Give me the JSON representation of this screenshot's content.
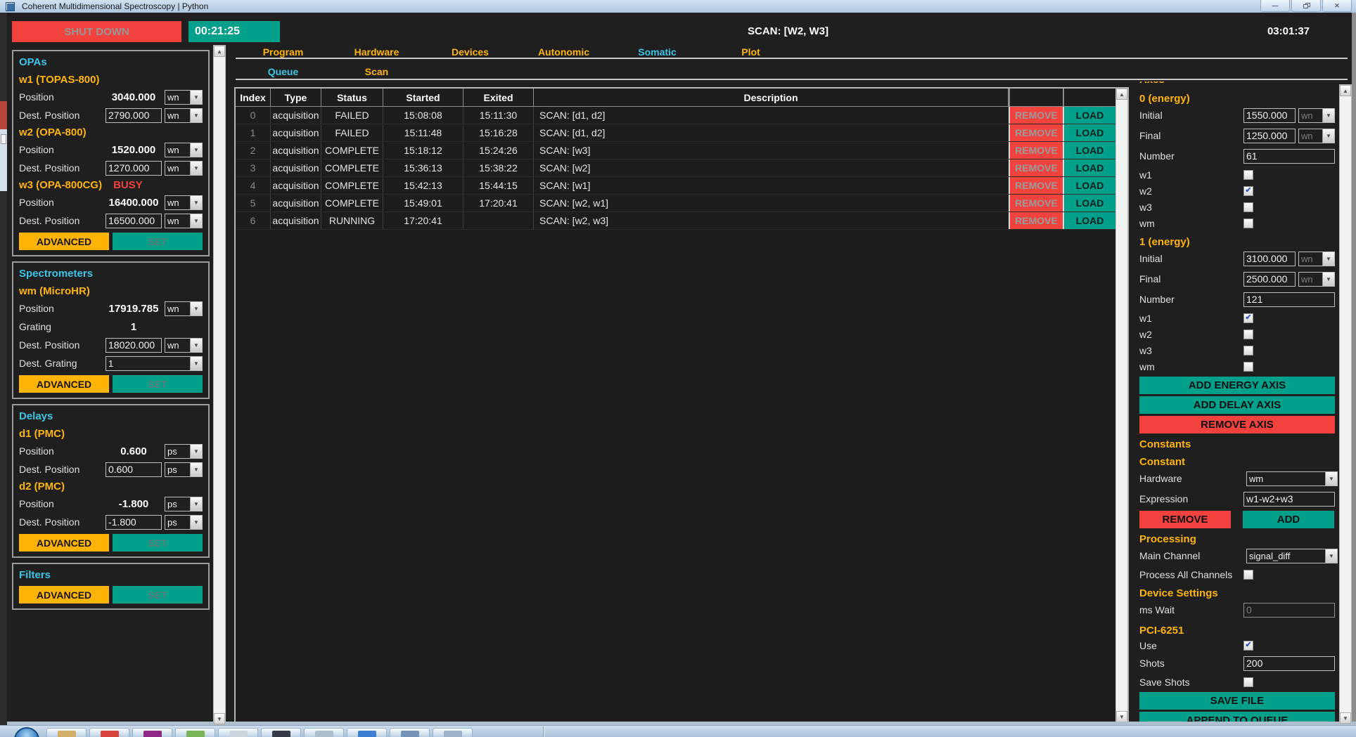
{
  "titlebar": {
    "title": "Coherent Multidimensional Spectroscopy | Python",
    "window_buttons": [
      {
        "name": "minimize",
        "glyph": "—"
      },
      {
        "name": "restore",
        "glyph": ""
      },
      {
        "name": "close",
        "glyph": "✕"
      }
    ]
  },
  "icons": {
    "chevron_down": "▼",
    "check": "✔",
    "scroll_up": "▲",
    "scroll_down": "▼"
  },
  "colors": {
    "teal": "#00a08b",
    "red": "#f2423e",
    "gold": "#ffb40c",
    "cyan": "#3cc5e8"
  },
  "topbar": {
    "shutdown_label": "SHUT DOWN",
    "timer": "00:21:25",
    "scan_status": "SCAN: [W2, W3]",
    "clock": "03:01:37"
  },
  "tabs": [
    {
      "label": "Program",
      "active": false
    },
    {
      "label": "Hardware",
      "active": false
    },
    {
      "label": "Devices",
      "active": false
    },
    {
      "label": "Autonomic",
      "active": false
    },
    {
      "label": "Somatic",
      "active": true
    },
    {
      "label": "Plot",
      "active": false
    }
  ],
  "subtabs": [
    {
      "label": "Queue",
      "active": true
    },
    {
      "label": "Scan",
      "active": false
    }
  ],
  "sidebar": {
    "sections": [
      {
        "title": "OPAs",
        "rows": [
          {
            "type": "device",
            "name": "w1 (TOPAS-800)",
            "status": ""
          },
          {
            "type": "readout",
            "label": "Position",
            "value": "3040.000",
            "unit": "wn"
          },
          {
            "type": "input",
            "label": "Dest. Position",
            "value": "2790.000",
            "unit": "wn"
          },
          {
            "type": "device",
            "name": "w2 (OPA-800)",
            "status": ""
          },
          {
            "type": "readout",
            "label": "Position",
            "value": "1520.000",
            "unit": "wn"
          },
          {
            "type": "input",
            "label": "Dest. Position",
            "value": "1270.000",
            "unit": "wn"
          },
          {
            "type": "device",
            "name": "w3 (OPA-800CG)",
            "status": "BUSY"
          },
          {
            "type": "readout",
            "label": "Position",
            "value": "16400.000",
            "unit": "wn"
          },
          {
            "type": "input",
            "label": "Dest. Position",
            "value": "16500.000",
            "unit": "wn"
          },
          {
            "type": "actions",
            "advanced": "ADVANCED",
            "set": "SET"
          }
        ]
      },
      {
        "title": "Spectrometers",
        "rows": [
          {
            "type": "device",
            "name": "wm (MicroHR)",
            "status": ""
          },
          {
            "type": "readout",
            "label": "Position",
            "value": "17919.785",
            "unit": "wn"
          },
          {
            "type": "readout-plain",
            "label": "Grating",
            "value": "1"
          },
          {
            "type": "input",
            "label": "Dest. Position",
            "value": "18020.000",
            "unit": "wn"
          },
          {
            "type": "select",
            "label": "Dest. Grating",
            "value": "1"
          },
          {
            "type": "actions",
            "advanced": "ADVANCED",
            "set": "SET"
          }
        ]
      },
      {
        "title": "Delays",
        "rows": [
          {
            "type": "device",
            "name": "d1 (PMC)",
            "status": ""
          },
          {
            "type": "readout",
            "label": "Position",
            "value": "0.600",
            "unit": "ps"
          },
          {
            "type": "input",
            "label": "Dest. Position",
            "value": "0.600",
            "unit": "ps"
          },
          {
            "type": "device",
            "name": "d2 (PMC)",
            "status": ""
          },
          {
            "type": "readout",
            "label": "Position",
            "value": "-1.800",
            "unit": "ps"
          },
          {
            "type": "input",
            "label": "Dest. Position",
            "value": "-1.800",
            "unit": "ps"
          },
          {
            "type": "actions",
            "advanced": "ADVANCED",
            "set": "SET"
          }
        ]
      },
      {
        "title": "Filters",
        "rows": [
          {
            "type": "actions",
            "advanced": "ADVANCED",
            "set": "SET"
          }
        ]
      }
    ]
  },
  "queue": {
    "columns": [
      "Index",
      "Type",
      "Status",
      "Started",
      "Exited",
      "Description"
    ],
    "rows": [
      {
        "index": "0",
        "type": "acquisition",
        "status": "FAILED",
        "started": "15:08:08",
        "exited": "15:11:30",
        "description": "SCAN: [d1, d2]",
        "remove_label": "REMOVE",
        "load_label": "LOAD"
      },
      {
        "index": "1",
        "type": "acquisition",
        "status": "FAILED",
        "started": "15:11:48",
        "exited": "15:16:28",
        "description": "SCAN: [d1, d2]",
        "remove_label": "REMOVE",
        "load_label": "LOAD"
      },
      {
        "index": "2",
        "type": "acquisition",
        "status": "COMPLETE",
        "started": "15:18:12",
        "exited": "15:24:26",
        "description": "SCAN: [w3]",
        "remove_label": "REMOVE",
        "load_label": "LOAD"
      },
      {
        "index": "3",
        "type": "acquisition",
        "status": "COMPLETE",
        "started": "15:36:13",
        "exited": "15:38:22",
        "description": "SCAN: [w2]",
        "remove_label": "REMOVE",
        "load_label": "LOAD"
      },
      {
        "index": "4",
        "type": "acquisition",
        "status": "COMPLETE",
        "started": "15:42:13",
        "exited": "15:44:15",
        "description": "SCAN: [w1]",
        "remove_label": "REMOVE",
        "load_label": "LOAD"
      },
      {
        "index": "5",
        "type": "acquisition",
        "status": "COMPLETE",
        "started": "15:49:01",
        "exited": "17:20:41",
        "description": "SCAN: [w2, w1]",
        "remove_label": "REMOVE",
        "load_label": "LOAD"
      },
      {
        "index": "6",
        "type": "acquisition",
        "status": "RUNNING",
        "started": "17:20:41",
        "exited": "",
        "description": "SCAN: [w2, w3]",
        "remove_label": "REMOVE",
        "load_label": "LOAD"
      }
    ]
  },
  "right_panel": {
    "clipped_header": "Axes",
    "rows": [
      {
        "type": "header",
        "label": "0 (energy)"
      },
      {
        "type": "unit-input",
        "label": "Initial",
        "value": "1550.000",
        "unit": "wn"
      },
      {
        "type": "unit-input",
        "label": "Final",
        "value": "1250.000",
        "unit": "wn"
      },
      {
        "type": "input",
        "label": "Number",
        "value": "61"
      },
      {
        "type": "check",
        "label": "w1",
        "checked": false
      },
      {
        "type": "check",
        "label": "w2",
        "checked": true
      },
      {
        "type": "check",
        "label": "w3",
        "checked": false
      },
      {
        "type": "check",
        "label": "wm",
        "checked": false
      },
      {
        "type": "header",
        "label": "1 (energy)"
      },
      {
        "type": "unit-input",
        "label": "Initial",
        "value": "3100.000",
        "unit": "wn"
      },
      {
        "type": "unit-input",
        "label": "Final",
        "value": "2500.000",
        "unit": "wn"
      },
      {
        "type": "input",
        "label": "Number",
        "value": "121"
      },
      {
        "type": "check",
        "label": "w1",
        "checked": true
      },
      {
        "type": "check",
        "label": "w2",
        "checked": false
      },
      {
        "type": "check",
        "label": "w3",
        "checked": false
      },
      {
        "type": "check",
        "label": "wm",
        "checked": false
      },
      {
        "type": "button",
        "label": "ADD ENERGY AXIS",
        "style": "teal"
      },
      {
        "type": "button",
        "label": "ADD DELAY AXIS",
        "style": "teal"
      },
      {
        "type": "button",
        "label": "REMOVE AXIS",
        "style": "red"
      },
      {
        "type": "header",
        "label": "Constants"
      },
      {
        "type": "header",
        "label": "Constant"
      },
      {
        "type": "select",
        "label": "Hardware",
        "value": "wm"
      },
      {
        "type": "input",
        "label": "Expression",
        "value": "w1-w2+w3"
      },
      {
        "type": "button-pair",
        "left": {
          "label": "REMOVE",
          "style": "red"
        },
        "right": {
          "label": "ADD",
          "style": "teal"
        }
      },
      {
        "type": "header",
        "label": "Processing"
      },
      {
        "type": "select",
        "label": "Main Channel",
        "value": "signal_diff"
      },
      {
        "type": "check",
        "label": "Process All Channels",
        "checked": false
      },
      {
        "type": "header",
        "label": "Device Settings"
      },
      {
        "type": "input",
        "label": "ms Wait",
        "value": "0",
        "disabled": true
      },
      {
        "type": "header",
        "label": "PCI-6251"
      },
      {
        "type": "check",
        "label": "Use",
        "checked": true
      },
      {
        "type": "input",
        "label": "Shots",
        "value": "200"
      },
      {
        "type": "check",
        "label": "Save Shots",
        "checked": false
      },
      {
        "type": "button",
        "label": "SAVE FILE",
        "style": "teal"
      },
      {
        "type": "button",
        "label": "APPEND TO QUEUE",
        "style": "teal"
      }
    ]
  },
  "taskbar": {
    "buttons": [
      {
        "color": "#d2b06a"
      },
      {
        "color": "#d8433d"
      },
      {
        "color": "#8e2a84"
      },
      {
        "color": "#79b657"
      },
      {
        "color": "#cdd6de"
      },
      {
        "color": "#343b46"
      },
      {
        "color": "#aebecb"
      },
      {
        "color": "#3f7fd2"
      },
      {
        "color": "#7694b8"
      },
      {
        "color": "#9fb3c8"
      }
    ]
  }
}
